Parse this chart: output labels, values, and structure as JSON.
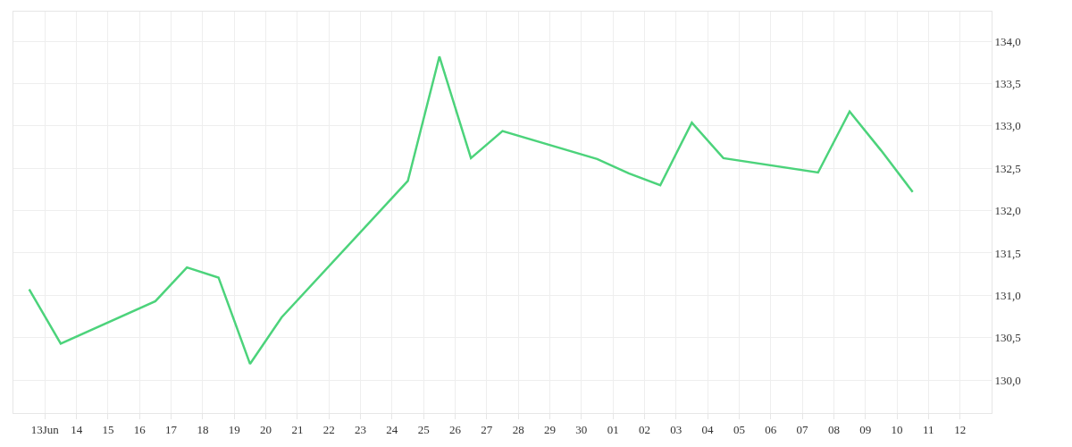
{
  "chart_data": {
    "type": "line",
    "x": [
      "--06-12T12:00",
      "--06-13T12:00",
      "--06-16T12:00",
      "--06-17T12:00",
      "--06-18T12:00",
      "--06-19T12:00",
      "--06-20T12:00",
      "--06-24T12:00",
      "--06-25T12:00",
      "--06-26T12:00",
      "--06-27T12:00",
      "--06-30T12:00",
      "--07-01T12:00",
      "--07-02T12:00",
      "--07-03T12:00",
      "--07-04T12:00",
      "--07-07T12:00",
      "--07-08T12:00",
      "--07-09T12:00",
      "--07-10T12:00"
    ],
    "series": [
      {
        "color": "#4cd37b",
        "values": [
          131.07,
          130.43,
          130.93,
          131.33,
          131.21,
          130.19,
          130.74,
          132.35,
          133.82,
          132.62,
          132.94,
          132.61,
          132.44,
          132.3,
          133.04,
          132.62,
          132.45,
          133.17,
          132.71,
          132.22
        ]
      }
    ],
    "xlim": [
      "--06-12",
      "--07-13"
    ],
    "xticks": [
      {
        "value": "--06-13",
        "label": "13Jun"
      },
      {
        "value": "--06-14",
        "label": "14"
      },
      {
        "value": "--06-15",
        "label": "15"
      },
      {
        "value": "--06-16",
        "label": "16"
      },
      {
        "value": "--06-17",
        "label": "17"
      },
      {
        "value": "--06-18",
        "label": "18"
      },
      {
        "value": "--06-19",
        "label": "19"
      },
      {
        "value": "--06-20",
        "label": "20"
      },
      {
        "value": "--06-21",
        "label": "21"
      },
      {
        "value": "--06-22",
        "label": "22"
      },
      {
        "value": "--06-23",
        "label": "23"
      },
      {
        "value": "--06-24",
        "label": "24"
      },
      {
        "value": "--06-25",
        "label": "25"
      },
      {
        "value": "--06-26",
        "label": "26"
      },
      {
        "value": "--06-27",
        "label": "27"
      },
      {
        "value": "--06-28",
        "label": "28"
      },
      {
        "value": "--06-29",
        "label": "29"
      },
      {
        "value": "--06-30",
        "label": "30"
      },
      {
        "value": "--07-01",
        "label": "01"
      },
      {
        "value": "--07-02",
        "label": "02"
      },
      {
        "value": "--07-03",
        "label": "03"
      },
      {
        "value": "--07-04",
        "label": "04"
      },
      {
        "value": "--07-05",
        "label": "05"
      },
      {
        "value": "--07-06",
        "label": "06"
      },
      {
        "value": "--07-07",
        "label": "07"
      },
      {
        "value": "--07-08",
        "label": "08"
      },
      {
        "value": "--07-09",
        "label": "09"
      },
      {
        "value": "--07-10",
        "label": "10"
      },
      {
        "value": "--07-11",
        "label": "11"
      },
      {
        "value": "--07-12",
        "label": "12"
      }
    ],
    "ylim": [
      129.61,
      134.35
    ],
    "yticks": [
      {
        "value": 130,
        "label": "130,0"
      },
      {
        "value": 130.5,
        "label": "130,5"
      },
      {
        "value": 131,
        "label": "131,0"
      },
      {
        "value": 131.5,
        "label": "131,5"
      },
      {
        "value": 132,
        "label": "132,0"
      },
      {
        "value": 132.5,
        "label": "132,5"
      },
      {
        "value": 133,
        "label": "133,0"
      },
      {
        "value": 133.5,
        "label": "133,5"
      },
      {
        "value": 134,
        "label": "134,0"
      }
    ],
    "grid": true,
    "marker": "none",
    "line_style": "solid"
  }
}
